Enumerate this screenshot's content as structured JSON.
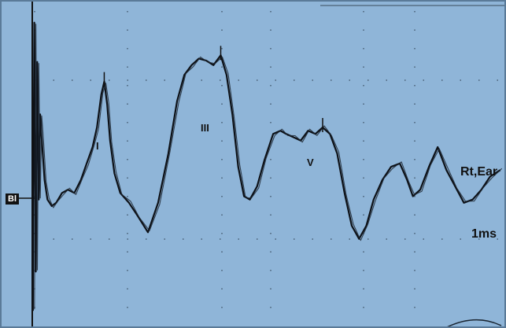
{
  "chart_data": {
    "type": "line",
    "title": "",
    "xlabel": "",
    "ylabel": "",
    "xlim": [
      -0.45,
      6.5
    ],
    "ylim": [
      -2.4,
      2.4
    ],
    "grid": true,
    "peaks": [
      {
        "label": "I",
        "x": 0.96
      },
      {
        "label": "III",
        "x": 2.56
      },
      {
        "label": "V",
        "x": 3.96
      }
    ],
    "channel_label": "Rt,Ear",
    "scale_label": "1ms",
    "marker_label": "Bl",
    "series": [
      {
        "x": [
          -0.02,
          0.0,
          0.02,
          0.04,
          0.06,
          0.08,
          0.1,
          0.14,
          0.18,
          0.24,
          0.3,
          0.38,
          0.46,
          0.55,
          0.64,
          0.72,
          0.8,
          0.86,
          0.92,
          0.96,
          1.0,
          1.04,
          1.1,
          1.18,
          1.3,
          1.42,
          1.56,
          1.7,
          1.84,
          1.96,
          2.06,
          2.16,
          2.26,
          2.36,
          2.46,
          2.56,
          2.64,
          2.72,
          2.8,
          2.88,
          2.96,
          3.06,
          3.16,
          3.28,
          3.38,
          3.46,
          3.56,
          3.66,
          3.76,
          3.86,
          3.96,
          4.06,
          4.16,
          4.26,
          4.36,
          4.46,
          4.56,
          4.66,
          4.78,
          4.9,
          5.02,
          5.12,
          5.2,
          5.3,
          5.42,
          5.54,
          5.66,
          5.78,
          5.9,
          6.02,
          6.14,
          6.26,
          6.4
        ],
        "y": [
          -2.2,
          2.2,
          -1.6,
          1.6,
          -0.5,
          0.8,
          0.45,
          -0.2,
          -0.5,
          -0.6,
          -0.55,
          -0.4,
          -0.35,
          -0.4,
          -0.2,
          0.05,
          0.3,
          0.6,
          1.1,
          1.3,
          0.95,
          0.4,
          -0.1,
          -0.4,
          -0.55,
          -0.75,
          -1.0,
          -0.55,
          0.2,
          1.0,
          1.4,
          1.55,
          1.65,
          1.62,
          1.55,
          1.7,
          1.4,
          0.8,
          0.0,
          -0.45,
          -0.5,
          -0.3,
          0.1,
          0.5,
          0.55,
          0.5,
          0.45,
          0.4,
          0.55,
          0.5,
          0.6,
          0.5,
          0.2,
          -0.4,
          -0.9,
          -1.1,
          -0.9,
          -0.5,
          -0.2,
          0.0,
          0.05,
          -0.2,
          -0.45,
          -0.35,
          0.0,
          0.3,
          -0.05,
          -0.3,
          -0.55,
          -0.5,
          -0.35,
          -0.15,
          -0.05
        ]
      }
    ]
  }
}
